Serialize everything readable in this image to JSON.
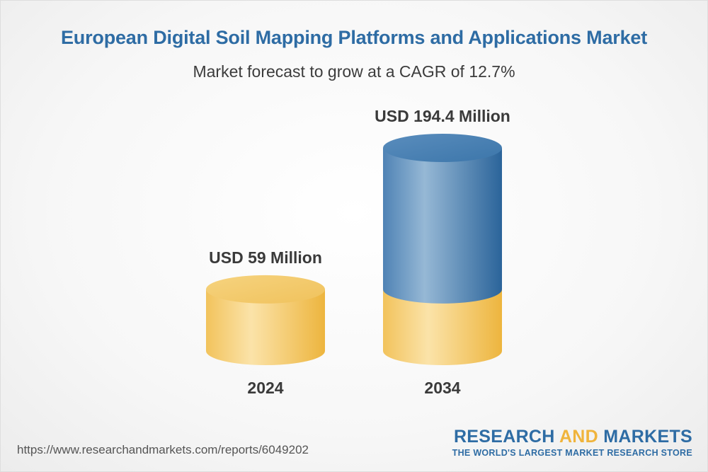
{
  "title": "European Digital Soil Mapping Platforms and Applications Market",
  "subtitle": "Market forecast to grow at a CAGR of 12.7%",
  "chart_data": {
    "type": "bar",
    "style": "3d-cylinder",
    "categories": [
      "2024",
      "2034"
    ],
    "values": [
      59,
      194.4
    ],
    "value_labels": [
      "USD 59 Million",
      "USD 194.4 Million"
    ],
    "unit": "USD Million",
    "cagr_percent": 12.7,
    "colors": {
      "base": "#f2c25a",
      "growth": "#2f6fa6"
    }
  },
  "footer": {
    "url": "https://www.researchandmarkets.com/reports/6049202",
    "logo_part1": "RESEARCH ",
    "logo_part2": "AND",
    "logo_part3": " MARKETS",
    "tagline": "THE WORLD'S LARGEST MARKET RESEARCH STORE"
  }
}
